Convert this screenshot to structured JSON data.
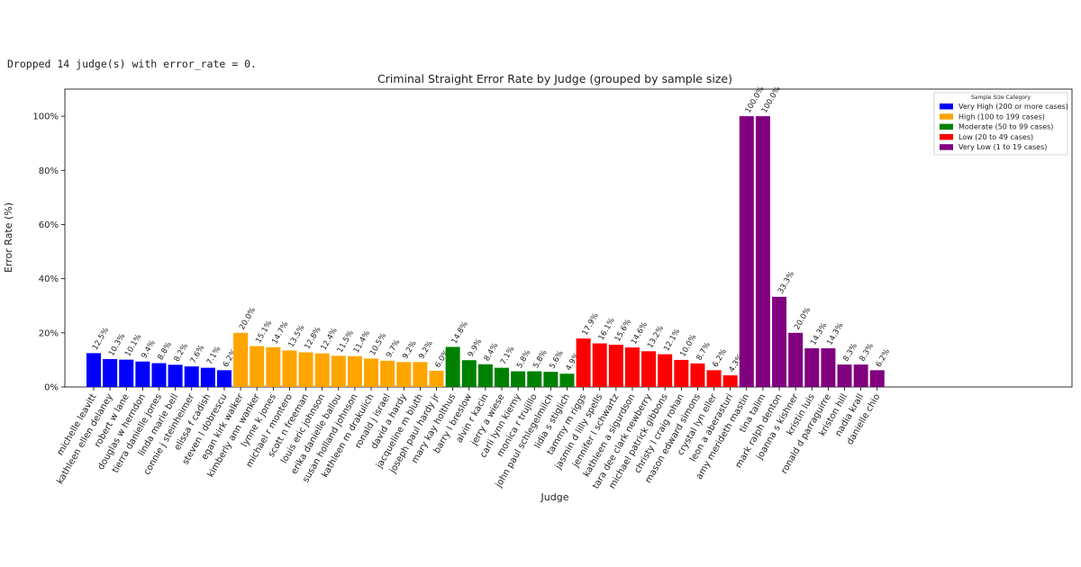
{
  "console_message": "Dropped 14 judge(s) with error_rate = 0.",
  "chart_data": {
    "type": "bar",
    "title": "Criminal Straight Error Rate by Judge (grouped by sample size)",
    "xlabel": "Judge",
    "ylabel": "Error Rate (%)",
    "ylim": [
      0,
      110
    ],
    "yticks": [
      "0%",
      "20%",
      "40%",
      "60%",
      "80%",
      "100%"
    ],
    "ytick_values": [
      0,
      20,
      40,
      60,
      80,
      100
    ],
    "grid": false,
    "legend": {
      "title": "Sample Size Category",
      "placement": "top-right",
      "entries": [
        {
          "key": "very_high",
          "label": "Very High (200 or more cases)",
          "color": "#0000ff"
        },
        {
          "key": "high",
          "label": "High (100 to 199 cases)",
          "color": "#ffa500"
        },
        {
          "key": "moderate",
          "label": "Moderate (50 to 99 cases)",
          "color": "#008000"
        },
        {
          "key": "low",
          "label": "Low (20 to 49 cases)",
          "color": "#ff0000"
        },
        {
          "key": "very_low",
          "label": "Very Low (1 to 19 cases)",
          "color": "#800080"
        }
      ]
    },
    "bars": [
      {
        "judge": "michelle leavitt",
        "value": 12.5,
        "label": "12.5%",
        "category": "very_high"
      },
      {
        "judge": "kathleen ellen delaney",
        "value": 10.3,
        "label": "10.3%",
        "category": "very_high"
      },
      {
        "judge": "robert w lane",
        "value": 10.1,
        "label": "10.1%",
        "category": "very_high"
      },
      {
        "judge": "douglas w herndon",
        "value": 9.4,
        "label": "9.4%",
        "category": "very_high"
      },
      {
        "judge": "tierra danielle jones",
        "value": 8.8,
        "label": "8.8%",
        "category": "very_high"
      },
      {
        "judge": "linda marie bell",
        "value": 8.2,
        "label": "8.2%",
        "category": "very_high"
      },
      {
        "judge": "connie j steinheimer",
        "value": 7.6,
        "label": "7.6%",
        "category": "very_high"
      },
      {
        "judge": "elissa f cadish",
        "value": 7.1,
        "label": "7.1%",
        "category": "very_high"
      },
      {
        "judge": "steven l dobrescu",
        "value": 6.2,
        "label": "6.2%",
        "category": "very_high"
      },
      {
        "judge": "egan kirk walker",
        "value": 20.0,
        "label": "20.0%",
        "category": "high"
      },
      {
        "judge": "kimberly ann wanker",
        "value": 15.1,
        "label": "15.1%",
        "category": "high"
      },
      {
        "judge": "lynne k jones",
        "value": 14.7,
        "label": "14.7%",
        "category": "high"
      },
      {
        "judge": "michael r montero",
        "value": 13.5,
        "label": "13.5%",
        "category": "high"
      },
      {
        "judge": "scott n freeman",
        "value": 12.8,
        "label": "12.8%",
        "category": "high"
      },
      {
        "judge": "louis eric johnson",
        "value": 12.4,
        "label": "12.4%",
        "category": "high"
      },
      {
        "judge": "erika danielle ballou",
        "value": 11.5,
        "label": "11.5%",
        "category": "high"
      },
      {
        "judge": "susan holland johnson",
        "value": 11.4,
        "label": "11.4%",
        "category": "high"
      },
      {
        "judge": "kathleen m drakulich",
        "value": 10.5,
        "label": "10.5%",
        "category": "high"
      },
      {
        "judge": "ronald j israel",
        "value": 9.7,
        "label": "9.7%",
        "category": "high"
      },
      {
        "judge": "david a hardy",
        "value": 9.2,
        "label": "9.2%",
        "category": "high"
      },
      {
        "judge": "jacqueline m bluth",
        "value": 9.2,
        "label": "9.2%",
        "category": "high"
      },
      {
        "judge": "joseph paul hardy jr",
        "value": 6.0,
        "label": "6.0%",
        "category": "high"
      },
      {
        "judge": "mary kay holthus",
        "value": 14.8,
        "label": "14.8%",
        "category": "moderate"
      },
      {
        "judge": "barry l breslow",
        "value": 9.9,
        "label": "9.9%",
        "category": "moderate"
      },
      {
        "judge": "alvin r kacin",
        "value": 8.4,
        "label": "8.4%",
        "category": "moderate"
      },
      {
        "judge": "jerry a wiese",
        "value": 7.1,
        "label": "7.1%",
        "category": "moderate"
      },
      {
        "judge": "carli lynn kierny",
        "value": 5.8,
        "label": "5.8%",
        "category": "moderate"
      },
      {
        "judge": "monica r trujillo",
        "value": 5.8,
        "label": "5.8%",
        "category": "moderate"
      },
      {
        "judge": "john paul schlegelmilch",
        "value": 5.6,
        "label": "5.6%",
        "category": "moderate"
      },
      {
        "judge": "lidia s stiglich",
        "value": 4.9,
        "label": "4.9%",
        "category": "moderate"
      },
      {
        "judge": "tammy m riggs",
        "value": 17.9,
        "label": "17.9%",
        "category": "low"
      },
      {
        "judge": "jasmin d lilly spells",
        "value": 16.1,
        "label": "16.1%",
        "category": "low"
      },
      {
        "judge": "jennifer l schwartz",
        "value": 15.6,
        "label": "15.6%",
        "category": "low"
      },
      {
        "judge": "kathleen a sigurdson",
        "value": 14.6,
        "label": "14.6%",
        "category": "low"
      },
      {
        "judge": "tara dee clark newberry",
        "value": 13.2,
        "label": "13.2%",
        "category": "low"
      },
      {
        "judge": "michael patrick gibbons",
        "value": 12.1,
        "label": "12.1%",
        "category": "low"
      },
      {
        "judge": "christy l craig rohan",
        "value": 10.0,
        "label": "10.0%",
        "category": "low"
      },
      {
        "judge": "mason edward simons",
        "value": 8.7,
        "label": "8.7%",
        "category": "low"
      },
      {
        "judge": "crystal lyn eller",
        "value": 6.2,
        "label": "6.2%",
        "category": "low"
      },
      {
        "judge": "leon a aberasturi",
        "value": 4.3,
        "label": "4.3%",
        "category": "low"
      },
      {
        "judge": "amy merideth mastin",
        "value": 100.0,
        "label": "100.0%",
        "category": "very_low"
      },
      {
        "judge": "tina talim",
        "value": 100.0,
        "label": "100.0%",
        "category": "very_low"
      },
      {
        "judge": "mark ralph denton",
        "value": 33.3,
        "label": "33.3%",
        "category": "very_low"
      },
      {
        "judge": "joanna s kishner",
        "value": 20.0,
        "label": "20.0%",
        "category": "very_low"
      },
      {
        "judge": "kristin luis",
        "value": 14.3,
        "label": "14.3%",
        "category": "very_low"
      },
      {
        "judge": "ronald d parraguirre",
        "value": 14.3,
        "label": "14.3%",
        "category": "very_low"
      },
      {
        "judge": "kriston hill",
        "value": 8.3,
        "label": "8.3%",
        "category": "very_low"
      },
      {
        "judge": "nadia krall",
        "value": 8.3,
        "label": "8.3%",
        "category": "very_low"
      },
      {
        "judge": "danielle chio",
        "value": 6.2,
        "label": "6.2%",
        "category": "very_low"
      }
    ]
  }
}
